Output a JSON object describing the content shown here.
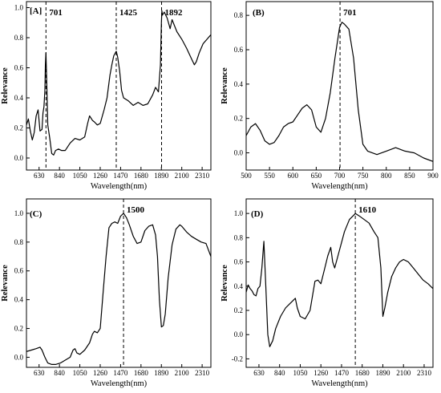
{
  "chart_data": [
    {
      "type": "line",
      "panel_label": "[A]",
      "xlabel": "Wavelength(nm)",
      "ylabel": "Relevance",
      "xlim": [
        500,
        2400
      ],
      "ylim": [
        -0.08,
        1.04
      ],
      "xticks": [
        630,
        840,
        1050,
        1260,
        1470,
        1680,
        1890,
        2100,
        2310
      ],
      "yticks": [
        0.0,
        0.2,
        0.4,
        0.6,
        0.8,
        1.0
      ],
      "annotations": [
        {
          "x": 701,
          "label": "701"
        },
        {
          "x": 1425,
          "label": "1425"
        },
        {
          "x": 1892,
          "label": "1892"
        }
      ],
      "series": [
        {
          "x": [
            500,
            520,
            540,
            560,
            580,
            600,
            620,
            640,
            660,
            670,
            680,
            690,
            695,
            701,
            710,
            720,
            740,
            760,
            780,
            800,
            830,
            860,
            900,
            950,
            1000,
            1050,
            1100,
            1130,
            1150,
            1180,
            1200,
            1230,
            1260,
            1300,
            1330,
            1360,
            1380,
            1400,
            1425,
            1440,
            1460,
            1480,
            1500,
            1550,
            1600,
            1650,
            1700,
            1750,
            1800,
            1830,
            1860,
            1880,
            1890,
            1895,
            1900,
            1920,
            1950,
            1980,
            2000,
            2050,
            2100,
            2150,
            2200,
            2230,
            2250,
            2280,
            2320,
            2360,
            2400
          ],
          "y": [
            0.22,
            0.26,
            0.18,
            0.12,
            0.17,
            0.28,
            0.32,
            0.18,
            0.19,
            0.3,
            0.34,
            0.45,
            0.62,
            0.7,
            0.48,
            0.22,
            0.13,
            0.03,
            0.02,
            0.05,
            0.06,
            0.05,
            0.05,
            0.1,
            0.13,
            0.12,
            0.14,
            0.23,
            0.28,
            0.25,
            0.24,
            0.22,
            0.23,
            0.32,
            0.4,
            0.55,
            0.62,
            0.68,
            0.71,
            0.67,
            0.58,
            0.45,
            0.4,
            0.38,
            0.35,
            0.37,
            0.35,
            0.36,
            0.42,
            0.47,
            0.44,
            0.62,
            0.9,
            0.98,
            0.95,
            0.97,
            0.93,
            0.86,
            0.92,
            0.84,
            0.79,
            0.73,
            0.66,
            0.62,
            0.64,
            0.7,
            0.76,
            0.79,
            0.82
          ]
        }
      ]
    },
    {
      "type": "line",
      "panel_label": "(B)",
      "xlabel": "Wavelength(nm)",
      "ylabel": "Relevance",
      "xlim": [
        500,
        900
      ],
      "ylim": [
        -0.1,
        0.88
      ],
      "xticks": [
        500,
        550,
        600,
        650,
        700,
        750,
        800,
        850,
        900
      ],
      "yticks": [
        0.0,
        0.2,
        0.4,
        0.6,
        0.8
      ],
      "annotations": [
        {
          "x": 701,
          "label": "701"
        }
      ],
      "series": [
        {
          "x": [
            500,
            510,
            520,
            530,
            540,
            550,
            560,
            570,
            580,
            590,
            600,
            610,
            620,
            630,
            640,
            650,
            660,
            670,
            680,
            690,
            700,
            705,
            710,
            720,
            730,
            740,
            750,
            760,
            780,
            800,
            820,
            840,
            860,
            880,
            900
          ],
          "y": [
            0.1,
            0.15,
            0.17,
            0.13,
            0.07,
            0.05,
            0.06,
            0.1,
            0.15,
            0.17,
            0.18,
            0.22,
            0.26,
            0.28,
            0.25,
            0.15,
            0.12,
            0.2,
            0.35,
            0.55,
            0.73,
            0.76,
            0.75,
            0.72,
            0.55,
            0.25,
            0.05,
            0.01,
            -0.01,
            0.01,
            0.03,
            0.01,
            0.0,
            -0.03,
            -0.05
          ]
        }
      ]
    },
    {
      "type": "line",
      "panel_label": "(C)",
      "xlabel": "Wavelength(nm)",
      "ylabel": "Relevance",
      "xlim": [
        500,
        2400
      ],
      "ylim": [
        -0.07,
        1.1
      ],
      "xticks": [
        630,
        840,
        1050,
        1260,
        1470,
        1680,
        1890,
        2100,
        2310
      ],
      "yticks": [
        0.0,
        0.2,
        0.4,
        0.6,
        0.8,
        1.0
      ],
      "annotations": [
        {
          "x": 1500,
          "label": "1500"
        }
      ],
      "series": [
        {
          "x": [
            500,
            550,
            600,
            640,
            660,
            690,
            720,
            760,
            800,
            850,
            900,
            950,
            980,
            1000,
            1020,
            1050,
            1100,
            1150,
            1180,
            1200,
            1230,
            1260,
            1290,
            1320,
            1350,
            1380,
            1410,
            1440,
            1470,
            1500,
            1530,
            1560,
            1600,
            1640,
            1680,
            1720,
            1760,
            1800,
            1830,
            1850,
            1870,
            1890,
            1910,
            1930,
            1960,
            2000,
            2040,
            2080,
            2100,
            2150,
            2200,
            2250,
            2300,
            2350,
            2400
          ],
          "y": [
            0.04,
            0.05,
            0.06,
            0.07,
            0.05,
            0.0,
            -0.04,
            -0.05,
            -0.05,
            -0.04,
            -0.02,
            0.0,
            0.05,
            0.06,
            0.03,
            0.02,
            0.05,
            0.1,
            0.16,
            0.18,
            0.17,
            0.2,
            0.45,
            0.7,
            0.9,
            0.93,
            0.94,
            0.93,
            0.98,
            1.0,
            0.97,
            0.92,
            0.84,
            0.79,
            0.8,
            0.88,
            0.91,
            0.92,
            0.85,
            0.7,
            0.4,
            0.21,
            0.22,
            0.3,
            0.55,
            0.78,
            0.89,
            0.92,
            0.91,
            0.87,
            0.84,
            0.82,
            0.8,
            0.79,
            0.7
          ]
        }
      ]
    },
    {
      "type": "line",
      "panel_label": "(D)",
      "xlabel": "Wavelength(nm)",
      "ylabel": "Relevance",
      "xlim": [
        500,
        2400
      ],
      "ylim": [
        -0.27,
        1.12
      ],
      "xticks": [
        630,
        840,
        1050,
        1260,
        1470,
        1680,
        1890,
        2100,
        2310
      ],
      "yticks": [
        -0.2,
        0.0,
        0.2,
        0.4,
        0.6,
        0.8,
        1.0
      ],
      "annotations": [
        {
          "x": 1610,
          "label": "1610"
        }
      ],
      "series": [
        {
          "x": [
            500,
            520,
            540,
            560,
            580,
            600,
            620,
            640,
            660,
            680,
            700,
            720,
            740,
            770,
            800,
            850,
            900,
            950,
            1000,
            1020,
            1050,
            1100,
            1150,
            1200,
            1230,
            1260,
            1300,
            1330,
            1360,
            1380,
            1400,
            1450,
            1500,
            1550,
            1600,
            1610,
            1650,
            1700,
            1750,
            1800,
            1840,
            1870,
            1890,
            1910,
            1940,
            1980,
            2020,
            2060,
            2100,
            2150,
            2200,
            2250,
            2300,
            2350,
            2400
          ],
          "y": [
            0.35,
            0.41,
            0.38,
            0.36,
            0.33,
            0.32,
            0.38,
            0.4,
            0.55,
            0.77,
            0.4,
            0.0,
            -0.1,
            -0.05,
            0.05,
            0.15,
            0.22,
            0.26,
            0.3,
            0.22,
            0.15,
            0.13,
            0.2,
            0.44,
            0.45,
            0.42,
            0.55,
            0.65,
            0.72,
            0.6,
            0.55,
            0.7,
            0.85,
            0.95,
            0.99,
            1.0,
            0.98,
            0.95,
            0.92,
            0.85,
            0.8,
            0.55,
            0.15,
            0.22,
            0.35,
            0.48,
            0.55,
            0.6,
            0.62,
            0.6,
            0.55,
            0.5,
            0.45,
            0.42,
            0.38
          ]
        }
      ]
    }
  ]
}
